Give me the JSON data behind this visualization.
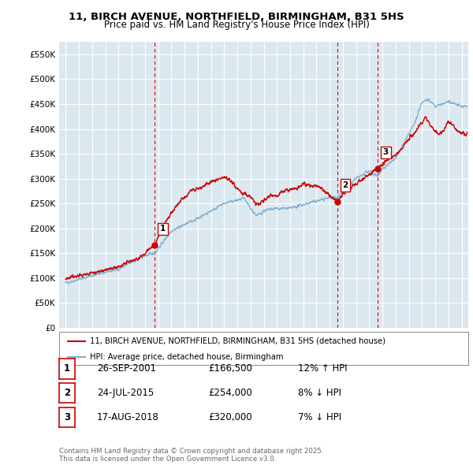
{
  "title_line1": "11, BIRCH AVENUE, NORTHFIELD, BIRMINGHAM, B31 5HS",
  "title_line2": "Price paid vs. HM Land Registry's House Price Index (HPI)",
  "background_color": "#ffffff",
  "plot_bg_color": "#dce8f0",
  "grid_color": "#ffffff",
  "hpi_color": "#7aaed0",
  "price_color": "#cc0000",
  "vline_color": "#cc0000",
  "ylim": [
    0,
    575000
  ],
  "yticks": [
    0,
    50000,
    100000,
    150000,
    200000,
    250000,
    300000,
    350000,
    400000,
    450000,
    500000,
    550000
  ],
  "ytick_labels": [
    "£0",
    "£50K",
    "£100K",
    "£150K",
    "£200K",
    "£250K",
    "£300K",
    "£350K",
    "£400K",
    "£450K",
    "£500K",
    "£550K"
  ],
  "xlim_start": 1994.5,
  "xlim_end": 2025.5,
  "transactions": [
    {
      "date_num": 2001.74,
      "price": 166500,
      "label": "1"
    },
    {
      "date_num": 2015.56,
      "price": 254000,
      "label": "2"
    },
    {
      "date_num": 2018.63,
      "price": 320000,
      "label": "3"
    }
  ],
  "legend_line1": "11, BIRCH AVENUE, NORTHFIELD, BIRMINGHAM, B31 5HS (detached house)",
  "legend_line2": "HPI: Average price, detached house, Birmingham",
  "table_entries": [
    {
      "num": "1",
      "date": "26-SEP-2001",
      "price": "£166,500",
      "pct": "12% ↑ HPI"
    },
    {
      "num": "2",
      "date": "24-JUL-2015",
      "price": "£254,000",
      "pct": "8% ↓ HPI"
    },
    {
      "num": "3",
      "date": "17-AUG-2018",
      "price": "£320,000",
      "pct": "7% ↓ HPI"
    }
  ],
  "footer": "Contains HM Land Registry data © Crown copyright and database right 2025.\nThis data is licensed under the Open Government Licence v3.0."
}
